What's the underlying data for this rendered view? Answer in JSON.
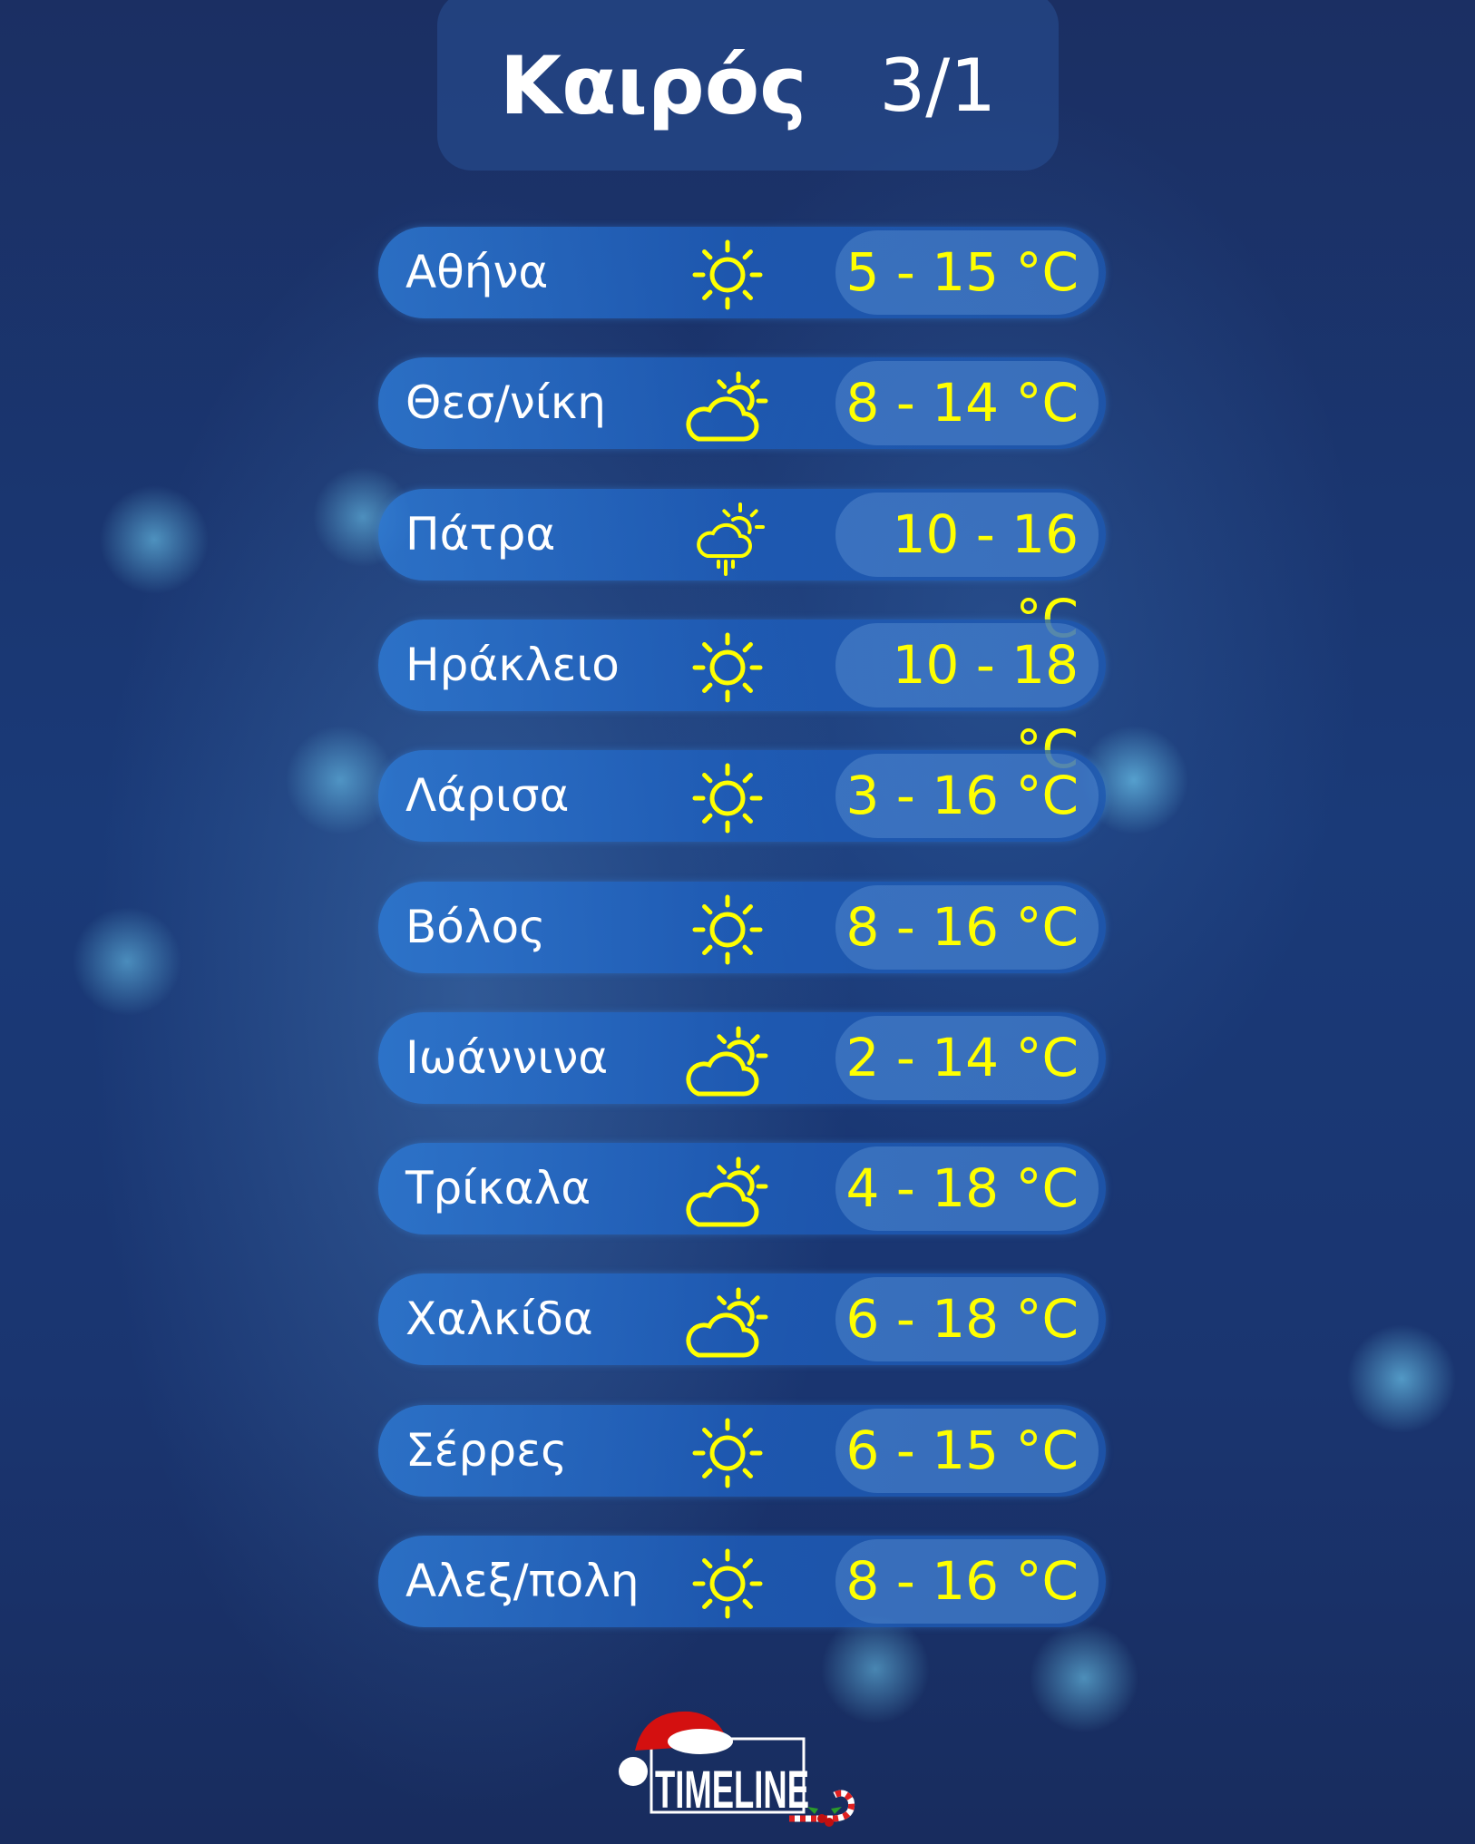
{
  "header": {
    "title": "Καιρός",
    "date": "3/1"
  },
  "colors": {
    "temp": "#ffff00",
    "city": "#ffffff",
    "background": "#1a3570"
  },
  "rows": [
    {
      "city": "Αθήνα",
      "icon": "sun-icon",
      "temp": "5 - 15 °C"
    },
    {
      "city": "Θεσ/νίκη",
      "icon": "partly-cloudy-icon",
      "temp": "8 - 14 °C"
    },
    {
      "city": "Πάτρα",
      "icon": "partly-cloudy-rain-icon",
      "temp": "10 - 16 °C"
    },
    {
      "city": "Ηράκλειο",
      "icon": "sun-icon",
      "temp": "10 - 18 °C"
    },
    {
      "city": "Λάρισα",
      "icon": "sun-icon",
      "temp": "3 - 16 °C"
    },
    {
      "city": "Βόλος",
      "icon": "sun-icon",
      "temp": "8 - 16 °C"
    },
    {
      "city": "Ιωάννινα",
      "icon": "partly-cloudy-icon",
      "temp": "2 - 14 °C"
    },
    {
      "city": "Τρίκαλα",
      "icon": "partly-cloudy-icon",
      "temp": "4 - 18 °C"
    },
    {
      "city": "Χαλκίδα",
      "icon": "partly-cloudy-icon",
      "temp": "6 - 18 °C"
    },
    {
      "city": "Σέρρες",
      "icon": "sun-icon",
      "temp": "6 - 15 °C"
    },
    {
      "city": "Αλεξ/πολη",
      "icon": "sun-icon",
      "temp": "8 - 16 °C"
    }
  ],
  "logo": {
    "text": "TIMELINE"
  }
}
